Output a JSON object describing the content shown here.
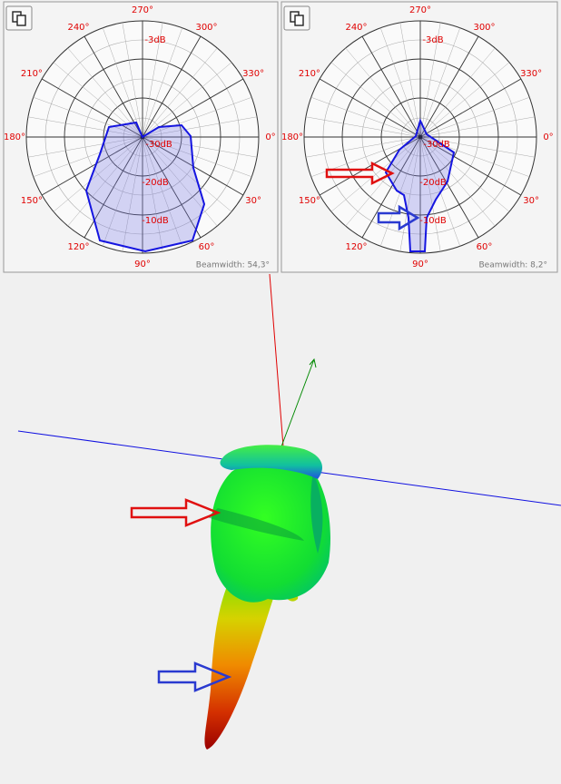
{
  "panels": [
    {
      "angle_labels": [
        "0°",
        "30°",
        "60°",
        "90°",
        "120°",
        "150°",
        "180°",
        "210°",
        "240°",
        "270°",
        "300°",
        "330°"
      ],
      "ring_labels": [
        "-3dB",
        "-10dB",
        "-20dB",
        "-30dB"
      ],
      "beamwidth": "Beamwidth: 54,3°"
    },
    {
      "angle_labels": [
        "0°",
        "30°",
        "60°",
        "90°",
        "120°",
        "150°",
        "180°",
        "210°",
        "240°",
        "270°",
        "300°",
        "330°"
      ],
      "ring_labels": [
        "-3dB",
        "-10dB",
        "-20dB",
        "-30dB"
      ],
      "beamwidth": "Beamwidth: 8,2°"
    }
  ]
}
